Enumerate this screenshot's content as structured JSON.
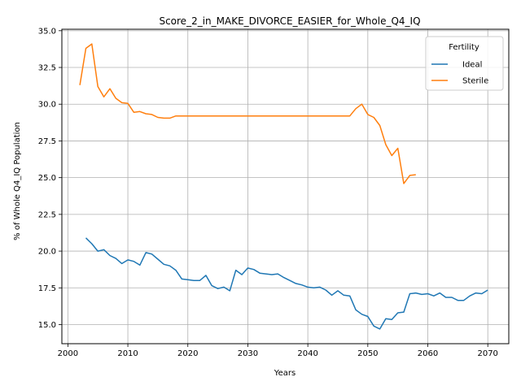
{
  "chart_data": {
    "type": "line",
    "title": "Score_2_in_MAKE_DIVORCE_EASIER_for_Whole_Q4_IQ",
    "xlabel": "Years",
    "ylabel": "% of Whole Q4_IQ Population",
    "xlim": [
      1999,
      2073.5
    ],
    "ylim": [
      13.7,
      35.1
    ],
    "xticks": [
      2000,
      2010,
      2020,
      2030,
      2040,
      2050,
      2060,
      2070
    ],
    "yticks": [
      15.0,
      17.5,
      20.0,
      22.5,
      25.0,
      27.5,
      30.0,
      32.5,
      35.0
    ],
    "grid": true,
    "legend": {
      "title": "Fertility",
      "position": "top-right"
    },
    "series": [
      {
        "name": "Ideal",
        "color": "#1f77b4",
        "x": [
          2003,
          2004,
          2005,
          2006,
          2007,
          2008,
          2009,
          2010,
          2011,
          2012,
          2013,
          2014,
          2015,
          2016,
          2017,
          2018,
          2019,
          2020,
          2021,
          2022,
          2023,
          2024,
          2025,
          2026,
          2027,
          2028,
          2029,
          2030,
          2031,
          2032,
          2033,
          2034,
          2035,
          2036,
          2037,
          2038,
          2039,
          2040,
          2041,
          2042,
          2043,
          2044,
          2045,
          2046,
          2047,
          2048,
          2049,
          2050,
          2051,
          2052,
          2053,
          2054,
          2055,
          2056,
          2057,
          2058,
          2059,
          2060,
          2061,
          2062,
          2063,
          2064,
          2065,
          2066,
          2067,
          2068,
          2069,
          2070
        ],
        "y": [
          20.9,
          20.5,
          20.0,
          20.1,
          19.7,
          19.5,
          19.15,
          19.4,
          19.3,
          19.05,
          19.9,
          19.8,
          19.45,
          19.1,
          19.0,
          18.7,
          18.1,
          18.05,
          18.0,
          18.0,
          18.35,
          17.65,
          17.45,
          17.55,
          17.3,
          18.7,
          18.4,
          18.85,
          18.75,
          18.5,
          18.45,
          18.4,
          18.45,
          18.2,
          18.0,
          17.8,
          17.7,
          17.55,
          17.5,
          17.55,
          17.35,
          17.0,
          17.3,
          17.0,
          16.95,
          16.0,
          15.7,
          15.55,
          14.9,
          14.7,
          15.4,
          15.35,
          15.8,
          15.85,
          17.1,
          17.15,
          17.05,
          17.1,
          16.95,
          17.15,
          16.85,
          16.85,
          16.65,
          16.65,
          16.95,
          17.15,
          17.1,
          17.35
        ]
      },
      {
        "name": "Sterile",
        "color": "#ff7f0e",
        "x": [
          2002,
          2003,
          2004,
          2005,
          2006,
          2007,
          2008,
          2009,
          2010,
          2011,
          2012,
          2013,
          2014,
          2015,
          2016,
          2017,
          2018,
          2019,
          2020,
          2025,
          2030,
          2035,
          2040,
          2045,
          2047,
          2048,
          2049,
          2050,
          2051,
          2052,
          2053,
          2054,
          2055,
          2056,
          2057,
          2058
        ],
        "y": [
          31.3,
          33.8,
          34.1,
          31.2,
          30.5,
          31.05,
          30.4,
          30.1,
          30.05,
          29.45,
          29.5,
          29.35,
          29.3,
          29.1,
          29.05,
          29.05,
          29.2,
          29.2,
          29.2,
          29.2,
          29.2,
          29.2,
          29.2,
          29.2,
          29.2,
          29.7,
          30.0,
          29.3,
          29.1,
          28.55,
          27.25,
          26.5,
          27.0,
          24.6,
          25.15,
          25.2
        ]
      }
    ]
  }
}
